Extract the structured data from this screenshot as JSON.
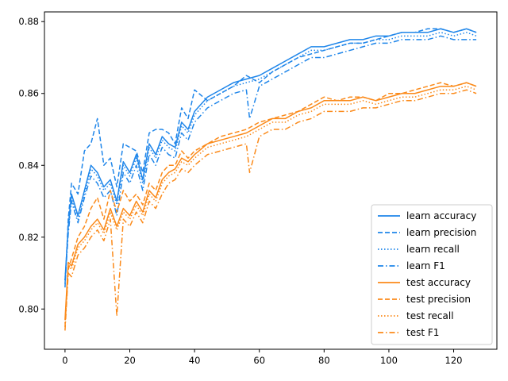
{
  "chart_data": {
    "type": "line",
    "title": "",
    "xlabel": "",
    "ylabel": "",
    "xlim": [
      -6.35,
      133.35
    ],
    "ylim": [
      0.7888,
      0.8827
    ],
    "xticks": [
      0,
      20,
      40,
      60,
      80,
      100,
      120
    ],
    "yticks": [
      0.8,
      0.82,
      0.84,
      0.86,
      0.88
    ],
    "grid": false,
    "legend": "lower-right",
    "colors": {
      "learn": "#1f86ea",
      "test": "#fb8a1a"
    },
    "series": [
      {
        "name": "learn accuracy",
        "group": "learn",
        "style": "solid",
        "x": [
          0,
          1,
          2,
          4,
          6,
          8,
          10,
          12,
          14,
          16,
          18,
          20,
          22,
          24,
          26,
          28,
          30,
          32,
          34,
          36,
          38,
          40,
          44,
          48,
          52,
          56,
          60,
          64,
          68,
          72,
          76,
          80,
          84,
          88,
          92,
          96,
          100,
          104,
          108,
          112,
          116,
          120,
          124,
          127
        ],
        "y": [
          0.808,
          0.823,
          0.832,
          0.826,
          0.833,
          0.84,
          0.838,
          0.834,
          0.836,
          0.83,
          0.841,
          0.838,
          0.843,
          0.836,
          0.846,
          0.843,
          0.848,
          0.846,
          0.845,
          0.852,
          0.85,
          0.855,
          0.859,
          0.861,
          0.863,
          0.864,
          0.865,
          0.867,
          0.869,
          0.871,
          0.873,
          0.873,
          0.874,
          0.875,
          0.875,
          0.876,
          0.876,
          0.877,
          0.877,
          0.877,
          0.878,
          0.877,
          0.878,
          0.877
        ]
      },
      {
        "name": "learn precision",
        "group": "learn",
        "style": "dashed",
        "x": [
          0,
          1,
          2,
          4,
          6,
          8,
          10,
          12,
          14,
          16,
          18,
          20,
          22,
          24,
          26,
          28,
          30,
          32,
          34,
          36,
          38,
          40,
          44,
          48,
          52,
          56,
          60,
          64,
          68,
          72,
          76,
          80,
          84,
          88,
          92,
          96,
          100,
          104,
          108,
          112,
          116,
          120,
          124,
          127
        ],
        "y": [
          0.806,
          0.825,
          0.835,
          0.832,
          0.844,
          0.846,
          0.853,
          0.84,
          0.842,
          0.834,
          0.846,
          0.845,
          0.844,
          0.838,
          0.849,
          0.85,
          0.85,
          0.849,
          0.846,
          0.856,
          0.853,
          0.861,
          0.858,
          0.86,
          0.862,
          0.865,
          0.863,
          0.866,
          0.868,
          0.87,
          0.871,
          0.872,
          0.873,
          0.874,
          0.874,
          0.875,
          0.876,
          0.877,
          0.877,
          0.878,
          0.878,
          0.877,
          0.878,
          0.877
        ]
      },
      {
        "name": "learn recall",
        "group": "learn",
        "style": "dotted",
        "x": [
          0,
          1,
          2,
          4,
          6,
          8,
          10,
          12,
          14,
          16,
          18,
          20,
          22,
          24,
          26,
          28,
          30,
          32,
          34,
          36,
          38,
          40,
          44,
          48,
          52,
          56,
          60,
          64,
          68,
          72,
          76,
          80,
          84,
          88,
          92,
          96,
          100,
          104,
          108,
          112,
          116,
          120,
          124,
          127
        ],
        "y": [
          0.808,
          0.822,
          0.831,
          0.825,
          0.832,
          0.839,
          0.837,
          0.833,
          0.835,
          0.829,
          0.84,
          0.837,
          0.842,
          0.835,
          0.845,
          0.842,
          0.847,
          0.845,
          0.844,
          0.851,
          0.849,
          0.854,
          0.858,
          0.86,
          0.862,
          0.863,
          0.864,
          0.866,
          0.868,
          0.87,
          0.872,
          0.872,
          0.873,
          0.874,
          0.874,
          0.875,
          0.875,
          0.876,
          0.876,
          0.876,
          0.877,
          0.876,
          0.877,
          0.876
        ]
      },
      {
        "name": "learn F1",
        "group": "learn",
        "style": "dashdot",
        "x": [
          0,
          1,
          2,
          4,
          6,
          8,
          10,
          12,
          14,
          16,
          18,
          20,
          22,
          24,
          26,
          28,
          30,
          32,
          34,
          36,
          38,
          40,
          44,
          48,
          52,
          56,
          57,
          60,
          64,
          68,
          72,
          76,
          80,
          84,
          88,
          92,
          96,
          100,
          104,
          108,
          112,
          116,
          120,
          124,
          127
        ],
        "y": [
          0.807,
          0.821,
          0.83,
          0.824,
          0.831,
          0.837,
          0.835,
          0.831,
          0.833,
          0.826,
          0.838,
          0.835,
          0.84,
          0.833,
          0.843,
          0.84,
          0.845,
          0.843,
          0.842,
          0.849,
          0.847,
          0.852,
          0.856,
          0.858,
          0.86,
          0.861,
          0.853,
          0.862,
          0.864,
          0.866,
          0.868,
          0.87,
          0.87,
          0.871,
          0.872,
          0.873,
          0.874,
          0.874,
          0.875,
          0.875,
          0.875,
          0.876,
          0.875,
          0.875,
          0.875
        ]
      },
      {
        "name": "test accuracy",
        "group": "test",
        "style": "solid",
        "x": [
          0,
          1,
          2,
          4,
          6,
          8,
          10,
          12,
          14,
          16,
          18,
          20,
          22,
          24,
          26,
          28,
          30,
          32,
          34,
          36,
          38,
          40,
          44,
          48,
          52,
          56,
          60,
          64,
          68,
          72,
          76,
          80,
          84,
          88,
          92,
          96,
          100,
          104,
          108,
          112,
          116,
          120,
          124,
          127
        ],
        "y": [
          0.797,
          0.813,
          0.812,
          0.818,
          0.82,
          0.823,
          0.825,
          0.822,
          0.828,
          0.823,
          0.828,
          0.826,
          0.83,
          0.827,
          0.833,
          0.831,
          0.836,
          0.838,
          0.839,
          0.842,
          0.841,
          0.843,
          0.846,
          0.847,
          0.848,
          0.849,
          0.851,
          0.853,
          0.853,
          0.855,
          0.856,
          0.858,
          0.858,
          0.858,
          0.859,
          0.858,
          0.859,
          0.86,
          0.86,
          0.861,
          0.862,
          0.862,
          0.863,
          0.862
        ]
      },
      {
        "name": "test precision",
        "group": "test",
        "style": "dashed",
        "x": [
          0,
          1,
          2,
          4,
          6,
          8,
          10,
          12,
          14,
          16,
          18,
          20,
          22,
          24,
          26,
          28,
          30,
          32,
          34,
          36,
          38,
          40,
          44,
          48,
          52,
          56,
          60,
          64,
          68,
          72,
          76,
          80,
          84,
          88,
          92,
          96,
          100,
          104,
          108,
          112,
          116,
          120,
          124,
          127
        ],
        "y": [
          0.795,
          0.811,
          0.814,
          0.82,
          0.823,
          0.828,
          0.831,
          0.825,
          0.833,
          0.827,
          0.833,
          0.83,
          0.832,
          0.829,
          0.835,
          0.833,
          0.838,
          0.84,
          0.84,
          0.844,
          0.842,
          0.844,
          0.846,
          0.848,
          0.849,
          0.85,
          0.852,
          0.853,
          0.854,
          0.855,
          0.857,
          0.859,
          0.858,
          0.859,
          0.859,
          0.858,
          0.86,
          0.86,
          0.861,
          0.862,
          0.863,
          0.862,
          0.863,
          0.862
        ]
      },
      {
        "name": "test recall",
        "group": "test",
        "style": "dotted",
        "x": [
          0,
          1,
          2,
          4,
          6,
          8,
          10,
          12,
          14,
          16,
          18,
          20,
          22,
          24,
          26,
          28,
          30,
          32,
          34,
          36,
          38,
          40,
          44,
          48,
          52,
          56,
          60,
          64,
          68,
          72,
          76,
          80,
          84,
          88,
          92,
          96,
          100,
          104,
          108,
          112,
          116,
          120,
          124,
          127
        ],
        "y": [
          0.796,
          0.812,
          0.811,
          0.817,
          0.819,
          0.822,
          0.824,
          0.821,
          0.827,
          0.822,
          0.827,
          0.825,
          0.829,
          0.826,
          0.832,
          0.83,
          0.835,
          0.837,
          0.838,
          0.841,
          0.84,
          0.842,
          0.845,
          0.846,
          0.847,
          0.848,
          0.85,
          0.852,
          0.852,
          0.854,
          0.855,
          0.857,
          0.857,
          0.857,
          0.858,
          0.857,
          0.858,
          0.859,
          0.859,
          0.86,
          0.861,
          0.861,
          0.862,
          0.861
        ]
      },
      {
        "name": "test F1",
        "group": "test",
        "style": "dashdot",
        "x": [
          0,
          1,
          2,
          4,
          6,
          8,
          10,
          12,
          14,
          16,
          18,
          20,
          22,
          24,
          26,
          28,
          30,
          32,
          34,
          36,
          38,
          40,
          44,
          48,
          52,
          56,
          57,
          60,
          64,
          68,
          72,
          76,
          80,
          84,
          88,
          92,
          96,
          100,
          104,
          108,
          112,
          116,
          120,
          124,
          127
        ],
        "y": [
          0.794,
          0.81,
          0.809,
          0.815,
          0.817,
          0.82,
          0.822,
          0.819,
          0.825,
          0.798,
          0.825,
          0.823,
          0.827,
          0.824,
          0.83,
          0.828,
          0.832,
          0.835,
          0.836,
          0.839,
          0.838,
          0.84,
          0.843,
          0.844,
          0.845,
          0.846,
          0.838,
          0.848,
          0.85,
          0.85,
          0.852,
          0.853,
          0.855,
          0.855,
          0.855,
          0.856,
          0.856,
          0.857,
          0.858,
          0.858,
          0.859,
          0.86,
          0.86,
          0.861,
          0.86
        ]
      }
    ]
  }
}
